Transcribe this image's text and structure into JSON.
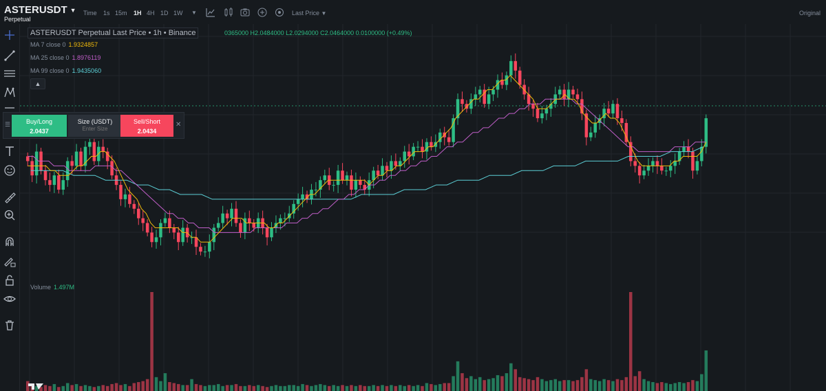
{
  "header": {
    "symbol": "ASTERUSDT",
    "subtitle": "Perpetual",
    "timeframes": [
      "Time",
      "1s",
      "15m",
      "1H",
      "4H",
      "1D",
      "1W"
    ],
    "active_timeframe": "1H",
    "price_type": "Last Price",
    "original": "Original"
  },
  "legend": {
    "title": "ASTERUSDT Perpetual Last Price • 1h • Binance",
    "ohlc": "0365000  H2.0484000  L2.0294000  C2.0464000  0.0100000 (+0.49%)",
    "ma7_label": "MA 7 close 0",
    "ma7_value": "1.9324857",
    "ma25_label": "MA 25 close 0",
    "ma25_value": "1.8976119",
    "ma99_label": "MA 99 close 0",
    "ma99_value": "1.9435060"
  },
  "trade": {
    "buy_label": "Buy/Long",
    "buy_price": "2.0437",
    "size_label": "Size (USDT)",
    "size_placeholder": "Enter Size",
    "sell_label": "Sell/Short",
    "sell_price": "2.0434"
  },
  "volume": {
    "label": "Volume",
    "value": "1.497M"
  },
  "colors": {
    "up": "#2ebd85",
    "down": "#f6465d",
    "ma7": "#f0b90b",
    "ma25": "#c05ec8",
    "ma99": "#5ccfd6",
    "background": "#161a1e"
  },
  "left_toolbar_icons": [
    "crosshair-icon",
    "trend-line-icon",
    "horizontal-lines-icon",
    "pattern-icon",
    "fib-icon",
    "text-icon",
    "emoji-icon",
    "ruler-icon",
    "zoom-in-icon",
    "magnet-icon",
    "lock-drawing-icon",
    "lock-icon",
    "eye-icon",
    "trash-icon"
  ],
  "chart_data": {
    "type": "candlestick",
    "price_range": [
      1.72,
      2.16
    ],
    "closes": [
      1.93,
      1.9,
      1.95,
      1.91,
      1.89,
      1.88,
      1.9,
      1.87,
      1.89,
      1.93,
      1.92,
      1.95,
      1.92,
      1.96,
      1.97,
      1.93,
      1.96,
      1.95,
      1.93,
      1.9,
      1.88,
      1.85,
      1.86,
      1.84,
      1.83,
      1.81,
      1.8,
      1.78,
      1.76,
      1.77,
      1.8,
      1.81,
      1.79,
      1.78,
      1.76,
      1.79,
      1.77,
      1.77,
      1.75,
      1.74,
      1.74,
      1.76,
      1.79,
      1.8,
      1.82,
      1.81,
      1.83,
      1.8,
      1.78,
      1.81,
      1.8,
      1.79,
      1.81,
      1.79,
      1.77,
      1.79,
      1.8,
      1.81,
      1.81,
      1.82,
      1.84,
      1.85,
      1.86,
      1.85,
      1.87,
      1.87,
      1.89,
      1.9,
      1.88,
      1.88,
      1.91,
      1.89,
      1.9,
      1.87,
      1.89,
      1.88,
      1.87,
      1.89,
      1.91,
      1.9,
      1.92,
      1.91,
      1.93,
      1.92,
      1.93,
      1.95,
      1.94,
      1.96,
      1.96,
      1.95,
      1.97,
      1.96,
      1.97,
      1.99,
      1.98,
      1.97,
      2.02,
      2.06,
      2.05,
      2.04,
      2.06,
      2.07,
      2.08,
      2.05,
      2.07,
      2.08,
      2.1,
      2.09,
      2.11,
      2.14,
      2.12,
      2.09,
      2.07,
      2.05,
      2.04,
      2.02,
      2.03,
      2.04,
      2.05,
      2.07,
      2.08,
      2.06,
      2.08,
      2.07,
      2.06,
      2.03,
      1.98,
      1.99,
      2.01,
      2.02,
      2.04,
      2.03,
      2.05,
      2.02,
      2.01,
      1.97,
      1.93,
      1.92,
      1.9,
      1.91,
      1.92,
      1.93,
      1.92,
      1.91,
      1.91,
      1.92,
      1.93,
      1.95,
      1.96,
      1.95,
      1.91,
      1.93,
      1.96,
      2.02
    ],
    "ma7": [
      1.92,
      1.92,
      1.92,
      1.92,
      1.92,
      1.91,
      1.91,
      1.9,
      1.9,
      1.9,
      1.91,
      1.92,
      1.92,
      1.93,
      1.94,
      1.94,
      1.95,
      1.95,
      1.94,
      1.93,
      1.91,
      1.89,
      1.87,
      1.86,
      1.85,
      1.83,
      1.82,
      1.8,
      1.79,
      1.79,
      1.79,
      1.79,
      1.79,
      1.79,
      1.78,
      1.78,
      1.77,
      1.77,
      1.76,
      1.76,
      1.76,
      1.77,
      1.78,
      1.79,
      1.8,
      1.81,
      1.81,
      1.81,
      1.8,
      1.8,
      1.8,
      1.8,
      1.8,
      1.79,
      1.79,
      1.8,
      1.8,
      1.81,
      1.82,
      1.83,
      1.84,
      1.85,
      1.86,
      1.86,
      1.87,
      1.88,
      1.89,
      1.89,
      1.89,
      1.89,
      1.89,
      1.89,
      1.89,
      1.89,
      1.89,
      1.88,
      1.89,
      1.9,
      1.9,
      1.91,
      1.91,
      1.92,
      1.92,
      1.93,
      1.94,
      1.95,
      1.95,
      1.95,
      1.96,
      1.96,
      1.97,
      1.98,
      1.99,
      2.0,
      2.02,
      2.03,
      2.04,
      2.05,
      2.06,
      2.06,
      2.07,
      2.08,
      2.08,
      2.09,
      2.1,
      2.1,
      2.11,
      2.1,
      2.09,
      2.08,
      2.07,
      2.06,
      2.04,
      2.04,
      2.04,
      2.05,
      2.06,
      2.06,
      2.07,
      2.06,
      2.06,
      2.05,
      2.03,
      2.02,
      2.01,
      2.01,
      2.02,
      2.03,
      2.02,
      2.02,
      2.01,
      1.99,
      1.97,
      1.95,
      1.93,
      1.92,
      1.92,
      1.92,
      1.92,
      1.92,
      1.92,
      1.92,
      1.93,
      1.93,
      1.94,
      1.94,
      1.94,
      1.94,
      1.95,
      1.97
    ],
    "ma25": [
      1.94,
      1.94,
      1.93,
      1.93,
      1.93,
      1.92,
      1.92,
      1.92,
      1.91,
      1.91,
      1.91,
      1.91,
      1.91,
      1.92,
      1.92,
      1.92,
      1.92,
      1.91,
      1.91,
      1.9,
      1.89,
      1.88,
      1.87,
      1.86,
      1.85,
      1.84,
      1.83,
      1.82,
      1.82,
      1.81,
      1.81,
      1.8,
      1.8,
      1.79,
      1.79,
      1.79,
      1.78,
      1.78,
      1.78,
      1.78,
      1.78,
      1.78,
      1.78,
      1.78,
      1.79,
      1.79,
      1.79,
      1.79,
      1.79,
      1.79,
      1.8,
      1.8,
      1.8,
      1.81,
      1.81,
      1.82,
      1.82,
      1.83,
      1.83,
      1.84,
      1.85,
      1.85,
      1.86,
      1.86,
      1.87,
      1.87,
      1.88,
      1.88,
      1.89,
      1.89,
      1.9,
      1.9,
      1.91,
      1.91,
      1.92,
      1.92,
      1.93,
      1.93,
      1.94,
      1.94,
      1.95,
      1.96,
      1.96,
      1.97,
      1.97,
      1.98,
      1.99,
      1.99,
      2.0,
      2.0,
      2.01,
      2.02,
      2.02,
      2.03,
      2.03,
      2.04,
      2.04,
      2.05,
      2.05,
      2.05,
      2.06,
      2.06,
      2.06,
      2.06,
      2.06,
      2.06,
      2.05,
      2.05,
      2.04,
      2.03,
      2.02,
      2.01,
      2.0,
      1.99,
      1.98,
      1.97,
      1.96,
      1.96,
      1.95,
      1.95,
      1.95,
      1.95,
      1.95,
      1.95,
      1.95,
      1.96,
      1.96,
      1.96,
      1.96,
      1.97,
      1.97,
      1.97
    ],
    "ma99": [
      1.91,
      1.91,
      1.91,
      1.91,
      1.9,
      1.9,
      1.9,
      1.89,
      1.89,
      1.89,
      1.88,
      1.88,
      1.87,
      1.87,
      1.86,
      1.86,
      1.86,
      1.85,
      1.85,
      1.85,
      1.85,
      1.85,
      1.85,
      1.85,
      1.85,
      1.85,
      1.85,
      1.85,
      1.85,
      1.85,
      1.85,
      1.86,
      1.86,
      1.86,
      1.86,
      1.87,
      1.87,
      1.87,
      1.88,
      1.88,
      1.89,
      1.89,
      1.89,
      1.9,
      1.9,
      1.9,
      1.91,
      1.91,
      1.91,
      1.92,
      1.92,
      1.92,
      1.93,
      1.93,
      1.93,
      1.93,
      1.94,
      1.94,
      1.94,
      1.94,
      1.95,
      1.95,
      1.95,
      1.96
    ],
    "volumes": [
      0.1,
      0.06,
      0.05,
      0.04,
      0.06,
      0.05,
      0.07,
      0.04,
      0.05,
      0.08,
      0.06,
      0.07,
      0.05,
      0.06,
      0.05,
      0.04,
      0.05,
      0.06,
      0.05,
      0.07,
      0.08,
      0.06,
      0.07,
      0.05,
      0.08,
      0.09,
      0.1,
      0.12,
      1.0,
      0.14,
      0.1,
      0.18,
      0.09,
      0.08,
      0.07,
      0.06,
      0.06,
      0.12,
      0.07,
      0.06,
      0.05,
      0.06,
      0.06,
      0.07,
      0.05,
      0.06,
      0.06,
      0.07,
      0.05,
      0.05,
      0.06,
      0.05,
      0.06,
      0.05,
      0.04,
      0.05,
      0.06,
      0.05,
      0.05,
      0.06,
      0.06,
      0.05,
      0.07,
      0.06,
      0.05,
      0.06,
      0.07,
      0.06,
      0.05,
      0.06,
      0.05,
      0.06,
      0.05,
      0.06,
      0.05,
      0.06,
      0.05,
      0.05,
      0.06,
      0.05,
      0.06,
      0.05,
      0.06,
      0.05,
      0.06,
      0.05,
      0.06,
      0.05,
      0.06,
      0.05,
      0.08,
      0.07,
      0.06,
      0.07,
      0.08,
      0.08,
      0.15,
      0.3,
      0.18,
      0.13,
      0.15,
      0.12,
      0.14,
      0.11,
      0.12,
      0.13,
      0.16,
      0.15,
      0.18,
      0.28,
      0.22,
      0.14,
      0.13,
      0.12,
      0.11,
      0.14,
      0.12,
      0.1,
      0.11,
      0.12,
      0.1,
      0.11,
      0.11,
      0.1,
      0.11,
      0.14,
      0.22,
      0.12,
      0.11,
      0.1,
      0.12,
      0.11,
      0.1,
      0.12,
      0.11,
      0.14,
      1.0,
      0.15,
      0.2,
      0.12,
      0.1,
      0.09,
      0.08,
      0.09,
      0.08,
      0.07,
      0.08,
      0.09,
      0.08,
      0.09,
      0.11,
      0.1,
      0.17,
      0.41
    ]
  }
}
